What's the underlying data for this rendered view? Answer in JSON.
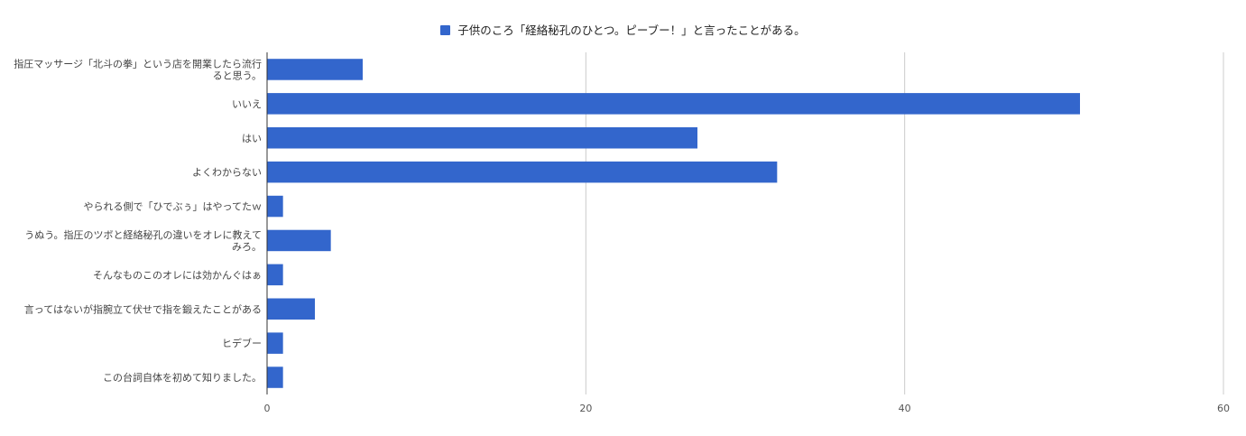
{
  "chart_data": {
    "type": "bar",
    "orientation": "horizontal",
    "legend_position": "top-center",
    "grid": true,
    "series": [
      {
        "name": "子供のころ「経絡秘孔のひとつ。ピーブー！」と言ったことがある。",
        "color": "#3366cc"
      }
    ],
    "categories": [
      [
        "指圧マッサージ「北斗の拳」という店を開業したら流行",
        "ると思う。"
      ],
      [
        "いいえ"
      ],
      [
        "はい"
      ],
      [
        "よくわからない"
      ],
      [
        "やられる側で「ひでぶぅ」はやってたｗ"
      ],
      [
        "うぬう。指圧のツボと経絡秘孔の違いをオレに教えて",
        "みろ。"
      ],
      [
        "そんなものこのオレには効かんぐはぁ"
      ],
      [
        "言ってはないが指腕立て伏せで指を鍛えたことがある"
      ],
      [
        "ヒデブー"
      ],
      [
        "この台詞自体を初めて知りました。"
      ]
    ],
    "values": [
      6,
      51,
      27,
      32,
      1,
      4,
      1,
      3,
      1,
      1
    ],
    "xlim": [
      0,
      60
    ],
    "xticks": [
      "0",
      "20",
      "40",
      "60"
    ]
  }
}
